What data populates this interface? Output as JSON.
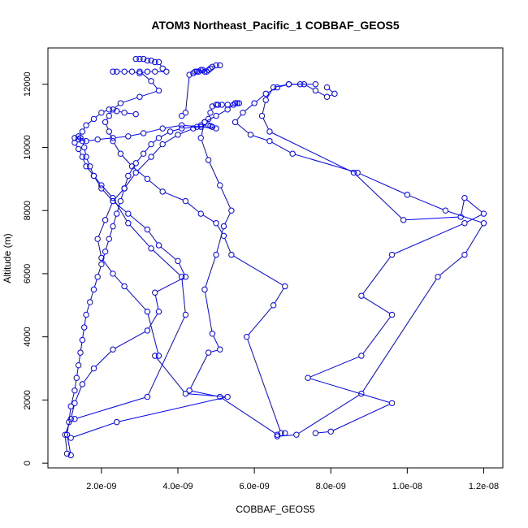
{
  "chart_data": {
    "type": "line",
    "title": "ATOM3 Northeast_Pacific_1 COBBAF_GEOS5",
    "xlabel": "COBBAF_GEOS5",
    "ylabel": "Altitude (m)",
    "xlim": [
      6e-10,
      1.25e-08
    ],
    "ylim": [
      -150,
      13150
    ],
    "xticks": [
      2e-09,
      4e-09,
      6e-09,
      8e-09,
      1e-08,
      1.2e-08
    ],
    "xtick_labels": [
      "2.0e-09",
      "4.0e-09",
      "6.0e-09",
      "8.0e-09",
      "1.0e-08",
      "1.2e-08"
    ],
    "yticks": [
      0,
      2000,
      4000,
      6000,
      8000,
      10000,
      12000
    ],
    "ytick_labels": [
      "0",
      "2000",
      "4000",
      "6000",
      "8000",
      "10000",
      "12000"
    ],
    "marker": "open-circle",
    "color": "#0000ff",
    "grid": false,
    "legend": "none",
    "series": [
      {
        "x": [
          1.2e-09,
          1.1e-09,
          1.15e-09,
          1.2e-09,
          1.3e-09,
          1.35e-09,
          1.4e-09,
          1.45e-09,
          1.5e-09,
          1.55e-09,
          1.6e-09,
          1.7e-09,
          1.8e-09,
          1.9e-09,
          2e-09,
          2.1e-09,
          2.2e-09,
          2.3e-09,
          2.4e-09,
          2.5e-09,
          2.6e-09,
          2.7e-09,
          2.9e-09,
          3.1e-09,
          3.3e-09,
          3.5e-09,
          3.8e-09,
          4.1e-09,
          4.5e-09,
          4.8e-09,
          4.85e-09,
          4.9e-09
        ],
        "y": [
          250,
          900,
          1300,
          1800,
          2300,
          2700,
          3100,
          3500,
          3900,
          4300,
          4700,
          5100,
          5500,
          5900,
          6300,
          6700,
          7100,
          7500,
          7900,
          8300,
          8700,
          9100,
          9500,
          9800,
          10100,
          10300,
          10500,
          10600,
          10650,
          10700,
          10680,
          10650
        ]
      },
      {
        "x": [
          1.1e-09,
          1.05e-09,
          1.2e-09,
          1.3e-09,
          1.5e-09,
          1.8e-09,
          2.3e-09,
          3.2e-09,
          3.5e-09,
          3.4e-09,
          4.2e-09,
          4e-09,
          3.5e-09,
          3.2e-09,
          2.7e-09,
          2.3e-09,
          2e-09,
          1.8e-09,
          1.7e-09,
          1.6e-09,
          1.55e-09,
          1.5e-09,
          1.45e-09,
          1.4e-09,
          1.5e-09,
          1.6e-09,
          1.8e-09,
          2e-09,
          2.2e-09,
          2.4e-09,
          2.6e-09,
          2.9e-09
        ],
        "y": [
          300,
          900,
          1400,
          1900,
          2500,
          3000,
          3600,
          4200,
          4800,
          5400,
          5900,
          6400,
          6900,
          7400,
          7900,
          8300,
          8700,
          9100,
          9400,
          9700,
          10000,
          10200,
          10300,
          10350,
          10500,
          10700,
          10900,
          11100,
          11200,
          11150,
          11100,
          11050
        ]
      },
      {
        "x": [
          1.2e-09,
          2.4e-09,
          5.3e-09,
          4.2e-09,
          3.4e-09,
          3.5e-09,
          3.2e-09,
          2.6e-09,
          2.3e-09,
          2e-09,
          1.9e-09,
          2.1e-09,
          2.3e-09,
          2.6e-09,
          2.9e-09,
          3.3e-09,
          3.6e-09,
          4e-09,
          4.4e-09,
          4.6e-09,
          4.7e-09,
          4.8e-09,
          4.85e-09,
          4.9e-09
        ],
        "y": [
          800,
          1300,
          2100,
          2200,
          3400,
          3400,
          4800,
          5600,
          6000,
          6500,
          7100,
          7700,
          8300,
          8700,
          9200,
          9700,
          10100,
          10400,
          10600,
          10700,
          10800,
          10900,
          11100,
          11300
        ]
      },
      {
        "x": [
          1.3e-09,
          3.2e-09,
          4.2e-09,
          4.1e-09,
          3.3e-09,
          2.7e-09,
          2.3e-09,
          2e-09,
          1.8e-09,
          1.6e-09,
          1.5e-09,
          1.4e-09,
          1.3e-09,
          1.3e-09,
          1.4e-09,
          1.6e-09,
          1.9e-09,
          2.3e-09,
          2.7e-09,
          3.1e-09,
          3.6e-09,
          4.1e-09,
          4.6e-09,
          5e-09
        ],
        "y": [
          1400,
          2100,
          4700,
          5900,
          6800,
          7600,
          8400,
          8800,
          9100,
          9400,
          9700,
          9950,
          10150,
          10300,
          10250,
          10200,
          10250,
          10300,
          10350,
          10450,
          10600,
          10700,
          10650,
          10600
        ]
      },
      {
        "x": [
          6.6e-09,
          5.1e-09,
          4.3e-09,
          4.8e-09,
          5.1e-09,
          4.9e-09,
          4.7e-09,
          5e-09,
          5.2e-09,
          5.4e-09,
          5.1e-09,
          4.8e-09,
          4.6e-09,
          4.7e-09,
          5e-09,
          5.3e-09,
          5.5e-09,
          5.6e-09,
          5.55e-09,
          5.45e-09,
          5.3e-09,
          5.15e-09,
          5.05e-09,
          5e-09
        ],
        "y": [
          900,
          2100,
          2300,
          3500,
          3600,
          4100,
          5500,
          6600,
          7500,
          8000,
          8800,
          9600,
          10300,
          10800,
          11000,
          11200,
          11400,
          11400,
          11400,
          11350,
          11350,
          11350,
          11350,
          11350
        ]
      },
      {
        "x": [
          6.8e-09,
          6.7e-09,
          5.8e-09,
          6.5e-09,
          6.8e-09,
          5.4e-09,
          5.2e-09,
          5e-09,
          4.6e-09,
          4.2e-09,
          3.6e-09,
          3.2e-09,
          2.8e-09,
          2.5e-09,
          2.3e-09,
          2.2e-09,
          2.1e-09,
          2.2e-09,
          2.3e-09,
          2.5e-09,
          3e-09,
          3.5e-09,
          3.3e-09,
          3e-09
        ],
        "y": [
          950,
          950,
          4000,
          5000,
          5600,
          6600,
          7200,
          7600,
          7900,
          8300,
          8600,
          9000,
          9400,
          9800,
          10200,
          10500,
          10800,
          11000,
          11200,
          11400,
          11600,
          11800,
          12100,
          12400
        ]
      },
      {
        "x": [
          7.6e-09,
          8e-09,
          9.6e-09,
          7.4e-09,
          8.8e-09,
          9.6e-09,
          8.8e-09,
          9.6e-09,
          1.15e-08,
          1.2e-08,
          1.15e-08,
          1.14e-08,
          9.9e-09,
          8.6e-09,
          6.4e-09,
          6.2e-09,
          6.3e-09,
          6.5e-09,
          6.9e-09,
          7.3e-09,
          7.6e-09,
          7.9e-09,
          8.1e-09,
          7.9e-09
        ],
        "y": [
          950,
          1000,
          1900,
          2700,
          3400,
          4700,
          5300,
          6600,
          7600,
          7900,
          8400,
          7800,
          7700,
          9200,
          10500,
          11000,
          11500,
          11900,
          12000,
          12000,
          11800,
          11600,
          11700,
          11900
        ]
      },
      {
        "x": [
          6.6e-09,
          7.1e-09,
          8.8e-09,
          1.08e-08,
          1.15e-08,
          1.2e-08,
          1.1e-08,
          1e-08,
          8.7e-09,
          7e-09,
          6.4e-09,
          5.9e-09,
          5.5e-09,
          5.7e-09,
          6e-09,
          6.3e-09,
          6.6e-09,
          6.9e-09,
          7.2e-09,
          7.6e-09
        ],
        "y": [
          850,
          900,
          2200,
          5900,
          6600,
          7600,
          8000,
          8500,
          9200,
          9800,
          10200,
          10400,
          10800,
          11100,
          11400,
          11700,
          11900,
          12000,
          12000,
          12000
        ]
      },
      {
        "x": [
          5.1e-09,
          5e-09,
          4.9e-09,
          4.85e-09,
          4.8e-09,
          4.75e-09,
          4.7e-09,
          4.65e-09,
          4.6e-09,
          4.55e-09,
          4.5e-09,
          4.45e-09,
          4.4e-09,
          4.3e-09,
          4.2e-09,
          4.1e-09
        ],
        "y": [
          12600,
          12600,
          12550,
          12500,
          12450,
          12400,
          12400,
          12450,
          12450,
          12400,
          12400,
          12400,
          12350,
          12300,
          11100,
          11000
        ]
      },
      {
        "x": [
          2.9e-09,
          3e-09,
          3.1e-09,
          3.2e-09,
          3.3e-09,
          3.4e-09,
          3.5e-09,
          3.6e-09,
          3.7e-09,
          3.4e-09,
          3.2e-09,
          3e-09,
          2.8e-09,
          2.6e-09,
          2.4e-09,
          2.3e-09
        ],
        "y": [
          12800,
          12800,
          12800,
          12750,
          12750,
          12700,
          12700,
          12500,
          12400,
          12400,
          12400,
          12350,
          12400,
          12400,
          12400,
          12400
        ]
      }
    ]
  }
}
